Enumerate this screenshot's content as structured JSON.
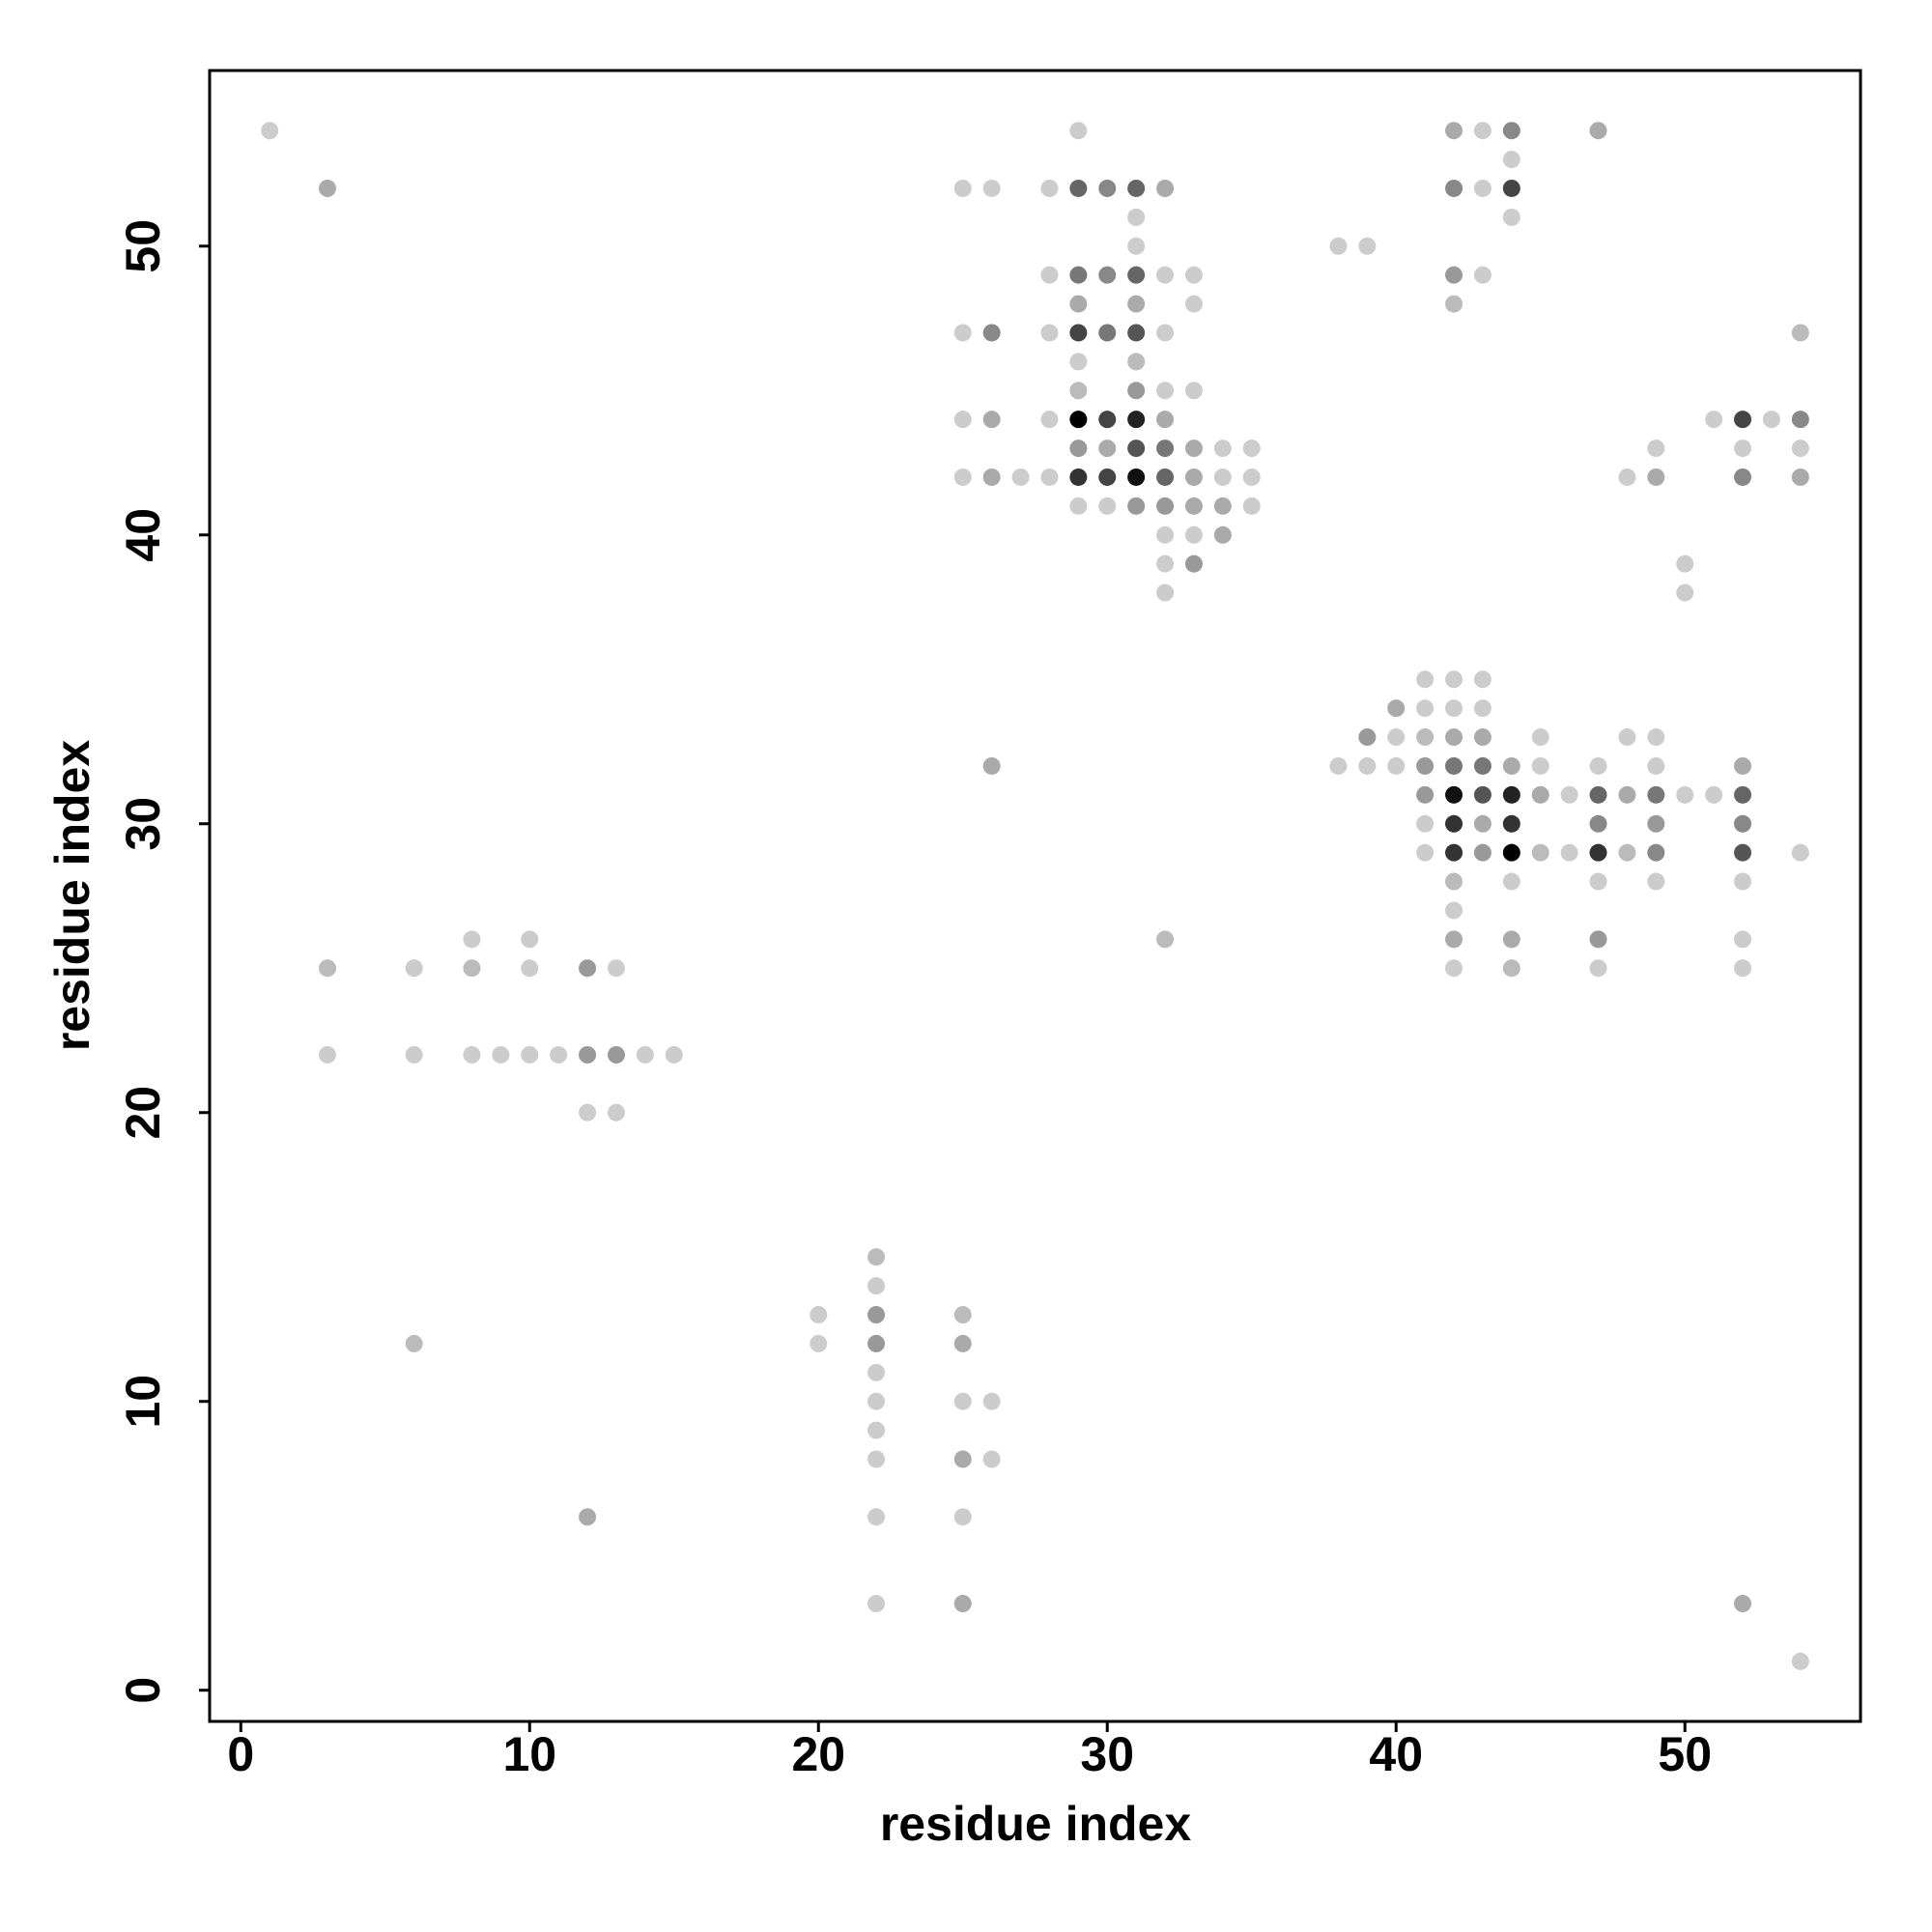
{
  "chart_data": {
    "type": "scatter",
    "xlabel": "residue index",
    "ylabel": "residue index",
    "xlim": [
      -1.08,
      56.08
    ],
    "ylim": [
      -1.08,
      56.08
    ],
    "xticks": [
      0,
      10,
      20,
      30,
      40,
      50
    ],
    "yticks": [
      0,
      10,
      20,
      30,
      40,
      50
    ],
    "x": [
      1,
      29,
      42,
      43,
      44,
      47,
      44,
      3,
      25,
      26,
      28,
      29,
      30,
      31,
      32,
      42,
      43,
      44,
      31,
      44,
      31,
      38,
      39,
      28,
      29,
      30,
      31,
      32,
      33,
      42,
      43,
      29,
      31,
      33,
      42,
      25,
      26,
      28,
      29,
      30,
      31,
      32,
      54,
      29,
      31,
      29,
      31,
      32,
      33,
      25,
      26,
      28,
      29,
      30,
      31,
      32,
      51,
      52,
      53,
      54,
      29,
      30,
      31,
      32,
      33,
      34,
      35,
      49,
      52,
      54,
      25,
      26,
      27,
      28,
      29,
      30,
      31,
      32,
      33,
      34,
      35,
      48,
      49,
      52,
      54,
      29,
      30,
      31,
      32,
      33,
      34,
      35,
      32,
      33,
      34,
      32,
      33,
      50,
      32,
      50,
      41,
      42,
      43,
      40,
      41,
      42,
      43,
      39,
      40,
      41,
      42,
      43,
      45,
      48,
      49,
      26,
      38,
      39,
      40,
      41,
      42,
      43,
      44,
      45,
      47,
      49,
      52,
      41,
      42,
      43,
      44,
      45,
      46,
      47,
      48,
      49,
      50,
      51,
      52,
      41,
      42,
      43,
      44,
      47,
      49,
      52,
      41,
      42,
      43,
      44,
      45,
      46,
      47,
      48,
      49,
      52,
      54,
      42,
      44,
      47,
      49,
      52,
      42,
      8,
      10,
      32,
      42,
      44,
      47,
      52,
      3,
      6,
      8,
      10,
      12,
      13,
      42,
      44,
      47,
      52,
      3,
      6,
      8,
      9,
      10,
      11,
      12,
      13,
      14,
      15,
      12,
      13,
      22,
      22,
      20,
      22,
      25,
      6,
      20,
      22,
      25,
      22,
      22,
      25,
      26,
      22,
      22,
      25,
      26,
      12,
      22,
      25,
      22,
      25,
      52,
      54
    ],
    "y": [
      54,
      54,
      54,
      54,
      54,
      54,
      53,
      52,
      52,
      52,
      52,
      52,
      52,
      52,
      52,
      52,
      52,
      52,
      51,
      51,
      50,
      50,
      50,
      49,
      49,
      49,
      49,
      49,
      49,
      49,
      49,
      48,
      48,
      48,
      48,
      47,
      47,
      47,
      47,
      47,
      47,
      47,
      47,
      46,
      46,
      45,
      45,
      45,
      45,
      44,
      44,
      44,
      44,
      44,
      44,
      44,
      44,
      44,
      44,
      44,
      43,
      43,
      43,
      43,
      43,
      43,
      43,
      43,
      43,
      43,
      42,
      42,
      42,
      42,
      42,
      42,
      42,
      42,
      42,
      42,
      42,
      42,
      42,
      42,
      42,
      41,
      41,
      41,
      41,
      41,
      41,
      41,
      40,
      40,
      40,
      39,
      39,
      39,
      38,
      38,
      35,
      35,
      35,
      34,
      34,
      34,
      34,
      33,
      33,
      33,
      33,
      33,
      33,
      33,
      33,
      32,
      32,
      32,
      32,
      32,
      32,
      32,
      32,
      32,
      32,
      32,
      32,
      31,
      31,
      31,
      31,
      31,
      31,
      31,
      31,
      31,
      31,
      31,
      31,
      30,
      30,
      30,
      30,
      30,
      30,
      30,
      29,
      29,
      29,
      29,
      29,
      29,
      29,
      29,
      29,
      29,
      29,
      28,
      28,
      28,
      28,
      28,
      27,
      26,
      26,
      26,
      26,
      26,
      26,
      26,
      25,
      25,
      25,
      25,
      25,
      25,
      25,
      25,
      25,
      25,
      22,
      22,
      22,
      22,
      22,
      22,
      22,
      22,
      22,
      22,
      20,
      20,
      15,
      14,
      13,
      13,
      13,
      12,
      12,
      12,
      12,
      11,
      10,
      10,
      10,
      9,
      8,
      8,
      8,
      6,
      6,
      6,
      3,
      3,
      3,
      1
    ],
    "colors": [
      "#cccccc",
      "#cccccc",
      "#aaaaaa",
      "#cccccc",
      "#888888",
      "#aaaaaa",
      "#cccccc",
      "#aaaaaa",
      "#cccccc",
      "#cccccc",
      "#cccccc",
      "#666666",
      "#888888",
      "#666666",
      "#aaaaaa",
      "#888888",
      "#cccccc",
      "#444444",
      "#cccccc",
      "#cccccc",
      "#cccccc",
      "#cccccc",
      "#cccccc",
      "#cccccc",
      "#777777",
      "#888888",
      "#666666",
      "#cccccc",
      "#cccccc",
      "#999999",
      "#cccccc",
      "#aaaaaa",
      "#aaaaaa",
      "#cccccc",
      "#bbbbbb",
      "#cccccc",
      "#888888",
      "#cccccc",
      "#444444",
      "#777777",
      "#555555",
      "#cccccc",
      "#bbbbbb",
      "#cccccc",
      "#bbbbbb",
      "#bbbbbb",
      "#999999",
      "#cccccc",
      "#cccccc",
      "#cccccc",
      "#aaaaaa",
      "#cccccc",
      "#000000",
      "#444444",
      "#222222",
      "#aaaaaa",
      "#cccccc",
      "#444444",
      "#cccccc",
      "#888888",
      "#999999",
      "#aaaaaa",
      "#555555",
      "#777777",
      "#aaaaaa",
      "#cccccc",
      "#cccccc",
      "#cccccc",
      "#cccccc",
      "#cccccc",
      "#cccccc",
      "#aaaaaa",
      "#cccccc",
      "#cccccc",
      "#333333",
      "#444444",
      "#111111",
      "#666666",
      "#aaaaaa",
      "#cccccc",
      "#cccccc",
      "#cccccc",
      "#aaaaaa",
      "#888888",
      "#aaaaaa",
      "#cccccc",
      "#cccccc",
      "#999999",
      "#999999",
      "#aaaaaa",
      "#aaaaaa",
      "#cccccc",
      "#cccccc",
      "#cccccc",
      "#aaaaaa",
      "#cccccc",
      "#999999",
      "#cccccc",
      "#cccccc",
      "#cccccc",
      "#cccccc",
      "#cccccc",
      "#cccccc",
      "#aaaaaa",
      "#cccccc",
      "#cccccc",
      "#cccccc",
      "#999999",
      "#cccccc",
      "#bbbbbb",
      "#aaaaaa",
      "#aaaaaa",
      "#cccccc",
      "#cccccc",
      "#cccccc",
      "#aaaaaa",
      "#cccccc",
      "#cccccc",
      "#cccccc",
      "#999999",
      "#777777",
      "#777777",
      "#aaaaaa",
      "#cccccc",
      "#cccccc",
      "#cccccc",
      "#aaaaaa",
      "#999999",
      "#111111",
      "#555555",
      "#222222",
      "#aaaaaa",
      "#cccccc",
      "#666666",
      "#aaaaaa",
      "#777777",
      "#cccccc",
      "#cccccc",
      "#666666",
      "#cccccc",
      "#333333",
      "#aaaaaa",
      "#333333",
      "#888888",
      "#999999",
      "#888888",
      "#cccccc",
      "#333333",
      "#999999",
      "#000000",
      "#bbbbbb",
      "#cccccc",
      "#333333",
      "#bbbbbb",
      "#888888",
      "#555555",
      "#cccccc",
      "#bbbbbb",
      "#cccccc",
      "#cccccc",
      "#cccccc",
      "#cccccc",
      "#cccccc",
      "#cccccc",
      "#cccccc",
      "#bbbbbb",
      "#aaaaaa",
      "#aaaaaa",
      "#999999",
      "#cccccc",
      "#bbbbbb",
      "#cccccc",
      "#bbbbbb",
      "#cccccc",
      "#999999",
      "#cccccc",
      "#cccccc",
      "#bbbbbb",
      "#cccccc",
      "#cccccc",
      "#cccccc",
      "#cccccc",
      "#cccccc",
      "#cccccc",
      "#cccccc",
      "#cccccc",
      "#999999",
      "#999999",
      "#cccccc",
      "#cccccc",
      "#cccccc",
      "#cccccc",
      "#bbbbbb",
      "#cccccc",
      "#cccccc",
      "#999999",
      "#bbbbbb",
      "#bbbbbb",
      "#cccccc",
      "#999999",
      "#aaaaaa",
      "#cccccc",
      "#cccccc",
      "#cccccc",
      "#cccccc",
      "#cccccc",
      "#cccccc",
      "#aaaaaa",
      "#cccccc",
      "#aaaaaa",
      "#cccccc",
      "#cccccc",
      "#cccccc",
      "#aaaaaa",
      "#aaaaaa",
      "#cccccc"
    ]
  }
}
